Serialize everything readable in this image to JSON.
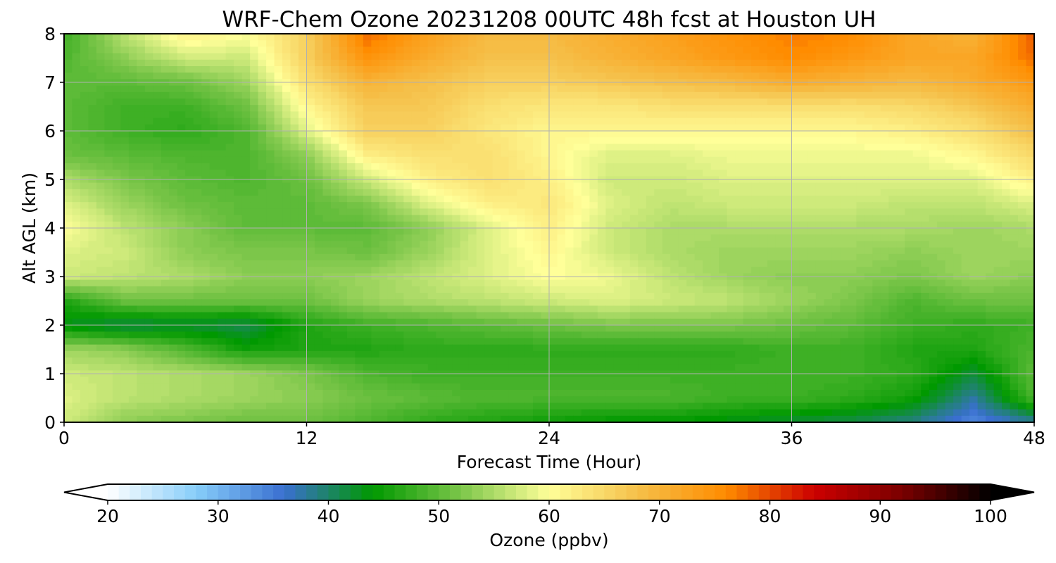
{
  "chart_data": {
    "type": "heatmap",
    "title": "WRF-Chem Ozone  20231208 00UTC 48h fcst at Houston UH",
    "xlabel": "Forecast Time (Hour)",
    "ylabel": "Alt AGL (km)",
    "xlim": [
      0,
      48
    ],
    "ylim": [
      0,
      8
    ],
    "xticks": [
      0,
      12,
      24,
      36,
      48
    ],
    "yticks": [
      0,
      1,
      2,
      3,
      4,
      5,
      6,
      7,
      8
    ],
    "grid": true,
    "x": [
      0,
      3,
      6,
      9,
      12,
      15,
      18,
      21,
      24,
      27,
      30,
      33,
      36,
      39,
      42,
      45,
      48
    ],
    "y": [
      0,
      0.5,
      1,
      1.5,
      2,
      2.5,
      3,
      3.5,
      4,
      4.5,
      5,
      5.5,
      6,
      6.5,
      7,
      7.5,
      8
    ],
    "z": [
      [
        57,
        53,
        52,
        51,
        51,
        49,
        47,
        46,
        45,
        44,
        44,
        43,
        42,
        41,
        39,
        34,
        38
      ],
      [
        58,
        56,
        55,
        54,
        53,
        51,
        50,
        49,
        49,
        49,
        49,
        48,
        48,
        47,
        45,
        38,
        49
      ],
      [
        57,
        56,
        55,
        54,
        52,
        49,
        48,
        48,
        48,
        48,
        48,
        48,
        48,
        48,
        47,
        42,
        50
      ],
      [
        54,
        53,
        49,
        45,
        46,
        46,
        47,
        47,
        47,
        47,
        47,
        47,
        48,
        48,
        46,
        46,
        49
      ],
      [
        43,
        41,
        42,
        41,
        46,
        48,
        49,
        50,
        51,
        52,
        52,
        52,
        51,
        50,
        48,
        47,
        48
      ],
      [
        46,
        51,
        51,
        51,
        51,
        54,
        55,
        56,
        57,
        58,
        57,
        56,
        54,
        52,
        49,
        51,
        51
      ],
      [
        57,
        56,
        55,
        53,
        53,
        54,
        56,
        58,
        60,
        59,
        56,
        54,
        53,
        53,
        52,
        54,
        53
      ],
      [
        58,
        57,
        53,
        52,
        52,
        51,
        54,
        58,
        61,
        57,
        55,
        54,
        54,
        54,
        53,
        54,
        54
      ],
      [
        60,
        56,
        53,
        50,
        50,
        50,
        53,
        58,
        62,
        57,
        55,
        55,
        55,
        55,
        55,
        54,
        55
      ],
      [
        58,
        54,
        51,
        50,
        50,
        52,
        58,
        62,
        63,
        58,
        56,
        57,
        57,
        57,
        56,
        56,
        58
      ],
      [
        55,
        52,
        50,
        49,
        51,
        57,
        62,
        64,
        62,
        57,
        57,
        58,
        58,
        58,
        58,
        58,
        62
      ],
      [
        51,
        50,
        49,
        49,
        53,
        62,
        64,
        64,
        61,
        58,
        58,
        59,
        59,
        59,
        59,
        61,
        65
      ],
      [
        50,
        48,
        47,
        49,
        58,
        66,
        66,
        63,
        61,
        61,
        61,
        61,
        61,
        61,
        62,
        64,
        68
      ],
      [
        50,
        48,
        48,
        51,
        61,
        67,
        67,
        64,
        63,
        63,
        64,
        64,
        64,
        64,
        65,
        67,
        71
      ],
      [
        50,
        50,
        51,
        54,
        64,
        70,
        68,
        66,
        66,
        67,
        68,
        69,
        71,
        70,
        69,
        71,
        74
      ],
      [
        49,
        53,
        57,
        57,
        66,
        75,
        71,
        68,
        68,
        70,
        72,
        74,
        76,
        74,
        72,
        72,
        78
      ],
      [
        48,
        56,
        62,
        60,
        66,
        78,
        73,
        69,
        69,
        71,
        73,
        75,
        77,
        76,
        72,
        70,
        79
      ]
    ],
    "colorbar": {
      "label": "Ozone  (ppbv)",
      "ticks": [
        20,
        30,
        40,
        50,
        60,
        70,
        80,
        90,
        100
      ],
      "range": [
        20,
        100
      ],
      "extend": "both",
      "colors": [
        "#ffffff",
        "#87cefa",
        "#3a6fd0",
        "#009900",
        "#7cc64a",
        "#ffff99",
        "#f5c04a",
        "#ff8c00",
        "#cc0000",
        "#7a0000",
        "#000000"
      ]
    }
  }
}
